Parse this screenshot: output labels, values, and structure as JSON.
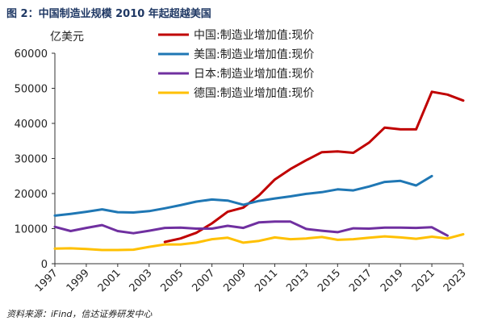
{
  "figure": {
    "title": "图 2：中国制造业规模 2010 年起超越美国",
    "source": "资料来源：iFind，信达证券研发中心"
  },
  "chart_data": {
    "type": "line",
    "ylabel": "亿美元",
    "xlabel": "",
    "ylim": [
      0,
      60000
    ],
    "yticks": [
      0,
      10000,
      20000,
      30000,
      40000,
      50000,
      60000
    ],
    "xlim": [
      1997,
      2023
    ],
    "xticks": [
      1997,
      1999,
      2001,
      2003,
      2005,
      2007,
      2009,
      2011,
      2013,
      2015,
      2017,
      2019,
      2021,
      2023
    ],
    "grid": false,
    "legend_position": "top-center",
    "series": [
      {
        "name": "中国:制造业增加值:现价",
        "color": "#c00000",
        "x": [
          2004,
          2005,
          2006,
          2007,
          2008,
          2009,
          2010,
          2011,
          2012,
          2013,
          2014,
          2015,
          2016,
          2017,
          2018,
          2019,
          2020,
          2021,
          2022,
          2023
        ],
        "values": [
          6200,
          7200,
          8800,
          11500,
          14800,
          16000,
          19500,
          24000,
          27000,
          29500,
          31800,
          32000,
          31600,
          34500,
          38800,
          38300,
          38300,
          49000,
          48200,
          46500
        ]
      },
      {
        "name": "美国:制造业增加值:现价",
        "color": "#1f77b4",
        "x": [
          1997,
          1998,
          1999,
          2000,
          2001,
          2002,
          2003,
          2004,
          2005,
          2006,
          2007,
          2008,
          2009,
          2010,
          2011,
          2012,
          2013,
          2014,
          2015,
          2016,
          2017,
          2018,
          2019,
          2020,
          2021
        ],
        "values": [
          13700,
          14200,
          14800,
          15500,
          14700,
          14600,
          15000,
          15800,
          16700,
          17700,
          18300,
          18000,
          16800,
          17900,
          18600,
          19200,
          19900,
          20400,
          21200,
          20900,
          22000,
          23300,
          23600,
          22300,
          25000
        ]
      },
      {
        "name": "日本:制造业增加值:现价",
        "color": "#7030a0",
        "x": [
          1997,
          1998,
          1999,
          2000,
          2001,
          2002,
          2003,
          2004,
          2005,
          2006,
          2007,
          2008,
          2009,
          2010,
          2011,
          2012,
          2013,
          2014,
          2015,
          2016,
          2017,
          2018,
          2019,
          2020,
          2021,
          2022
        ],
        "values": [
          10500,
          9300,
          10200,
          11000,
          9300,
          8700,
          9400,
          10200,
          10300,
          10000,
          10000,
          10800,
          10200,
          11800,
          12000,
          12000,
          9900,
          9400,
          9000,
          10100,
          10000,
          10300,
          10300,
          10200,
          10400,
          8000
        ]
      },
      {
        "name": "德国:制造业增加值:现价",
        "color": "#ffc000",
        "x": [
          1997,
          1998,
          1999,
          2000,
          2001,
          2002,
          2003,
          2004,
          2005,
          2006,
          2007,
          2008,
          2009,
          2010,
          2011,
          2012,
          2013,
          2014,
          2015,
          2016,
          2017,
          2018,
          2019,
          2020,
          2021,
          2022,
          2023
        ],
        "values": [
          4300,
          4400,
          4200,
          3900,
          3900,
          4000,
          4800,
          5500,
          5500,
          6000,
          7000,
          7400,
          6000,
          6500,
          7500,
          7000,
          7200,
          7600,
          6800,
          7000,
          7400,
          7800,
          7500,
          7100,
          7700,
          7200,
          8400
        ]
      }
    ]
  }
}
